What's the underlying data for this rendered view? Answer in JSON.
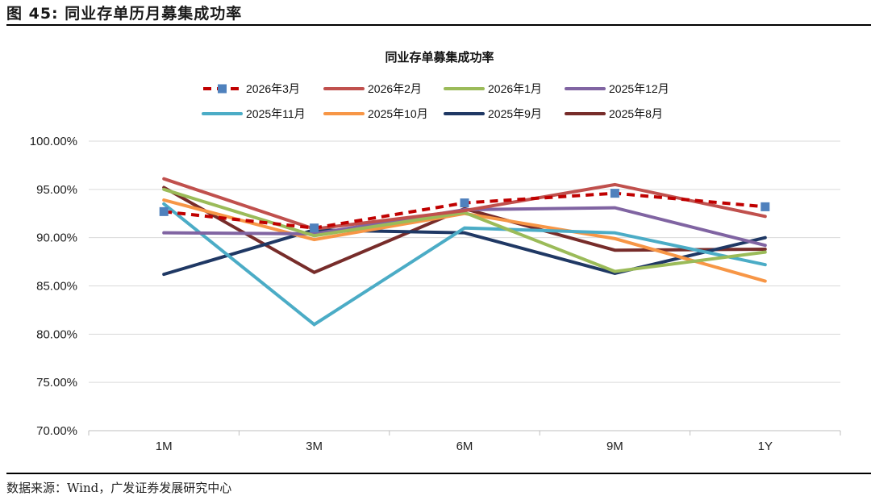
{
  "figure": {
    "label": "图 45:",
    "title": "同业存单历月募集成功率",
    "source": "数据来源：Wind，广发证券发展研究中心"
  },
  "chart_data": {
    "type": "line",
    "title": "同业存单募集成功率",
    "xlabel": "",
    "ylabel": "",
    "categories": [
      "1M",
      "3M",
      "6M",
      "9M",
      "1Y"
    ],
    "ylim": [
      70,
      100
    ],
    "yticks": [
      70,
      75,
      80,
      85,
      90,
      95,
      100
    ],
    "ytick_labels": [
      "70.00%",
      "75.00%",
      "80.00%",
      "85.00%",
      "90.00%",
      "95.00%",
      "100.00%"
    ],
    "grid": "horizontal",
    "legend_position": "top",
    "series": [
      {
        "name": "2026年3月",
        "color": "#C00000",
        "style": "dashed",
        "marker": "square",
        "marker_color": "#4F81BD",
        "values": [
          92.7,
          91.0,
          93.6,
          94.6,
          93.2
        ]
      },
      {
        "name": "2026年2月",
        "color": "#C0504D",
        "style": "solid",
        "values": [
          96.1,
          90.9,
          92.8,
          95.5,
          92.2
        ]
      },
      {
        "name": "2026年1月",
        "color": "#9BBB59",
        "style": "solid",
        "values": [
          95.0,
          90.2,
          92.6,
          86.5,
          88.5
        ]
      },
      {
        "name": "2025年12月",
        "color": "#8064A2",
        "style": "solid",
        "values": [
          90.5,
          90.4,
          92.9,
          93.1,
          89.2
        ]
      },
      {
        "name": "2025年11月",
        "color": "#4BACC6",
        "style": "solid",
        "values": [
          93.5,
          81.0,
          91.0,
          90.5,
          87.2
        ]
      },
      {
        "name": "2025年10月",
        "color": "#F79646",
        "style": "solid",
        "values": [
          93.9,
          89.8,
          92.5,
          89.9,
          85.5
        ]
      },
      {
        "name": "2025年9月",
        "color": "#1F3864",
        "style": "solid",
        "values": [
          86.2,
          90.8,
          90.5,
          86.3,
          90.0
        ]
      },
      {
        "name": "2025年8月",
        "color": "#772C2A",
        "style": "solid",
        "values": [
          95.2,
          86.4,
          93.0,
          88.7,
          88.8
        ]
      }
    ]
  }
}
